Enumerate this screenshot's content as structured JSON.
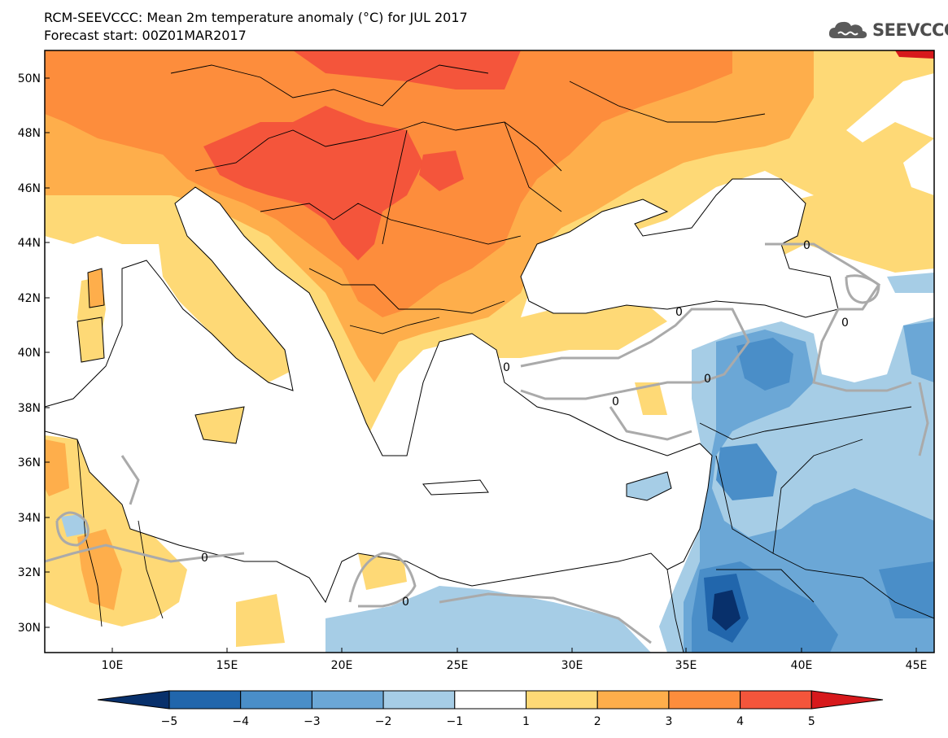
{
  "header": {
    "title": "RCM-SEEVCCC: Mean 2m temperature anomaly (°C) for JUL 2017",
    "subtitle": "Forecast start: 00Z01MAR2017",
    "logo_text": "SEEVCCC"
  },
  "map": {
    "lat_labels": [
      "50N",
      "48N",
      "46N",
      "44N",
      "42N",
      "40N",
      "38N",
      "36N",
      "34N",
      "32N",
      "30N"
    ],
    "lon_labels": [
      "10E",
      "15E",
      "20E",
      "25E",
      "30E",
      "35E",
      "40E",
      "45E"
    ],
    "contour_label": "0"
  },
  "legend": {
    "labels": [
      "−5",
      "−4",
      "−3",
      "−2",
      "−1",
      "1",
      "2",
      "3",
      "4",
      "5"
    ],
    "colors": [
      "#08306b",
      "#2166ac",
      "#4a8ec8",
      "#6ba7d6",
      "#a6cde6",
      "#ffffff",
      "#fed976",
      "#feae4b",
      "#fd8d3c",
      "#f4553b",
      "#d7191c"
    ]
  }
}
